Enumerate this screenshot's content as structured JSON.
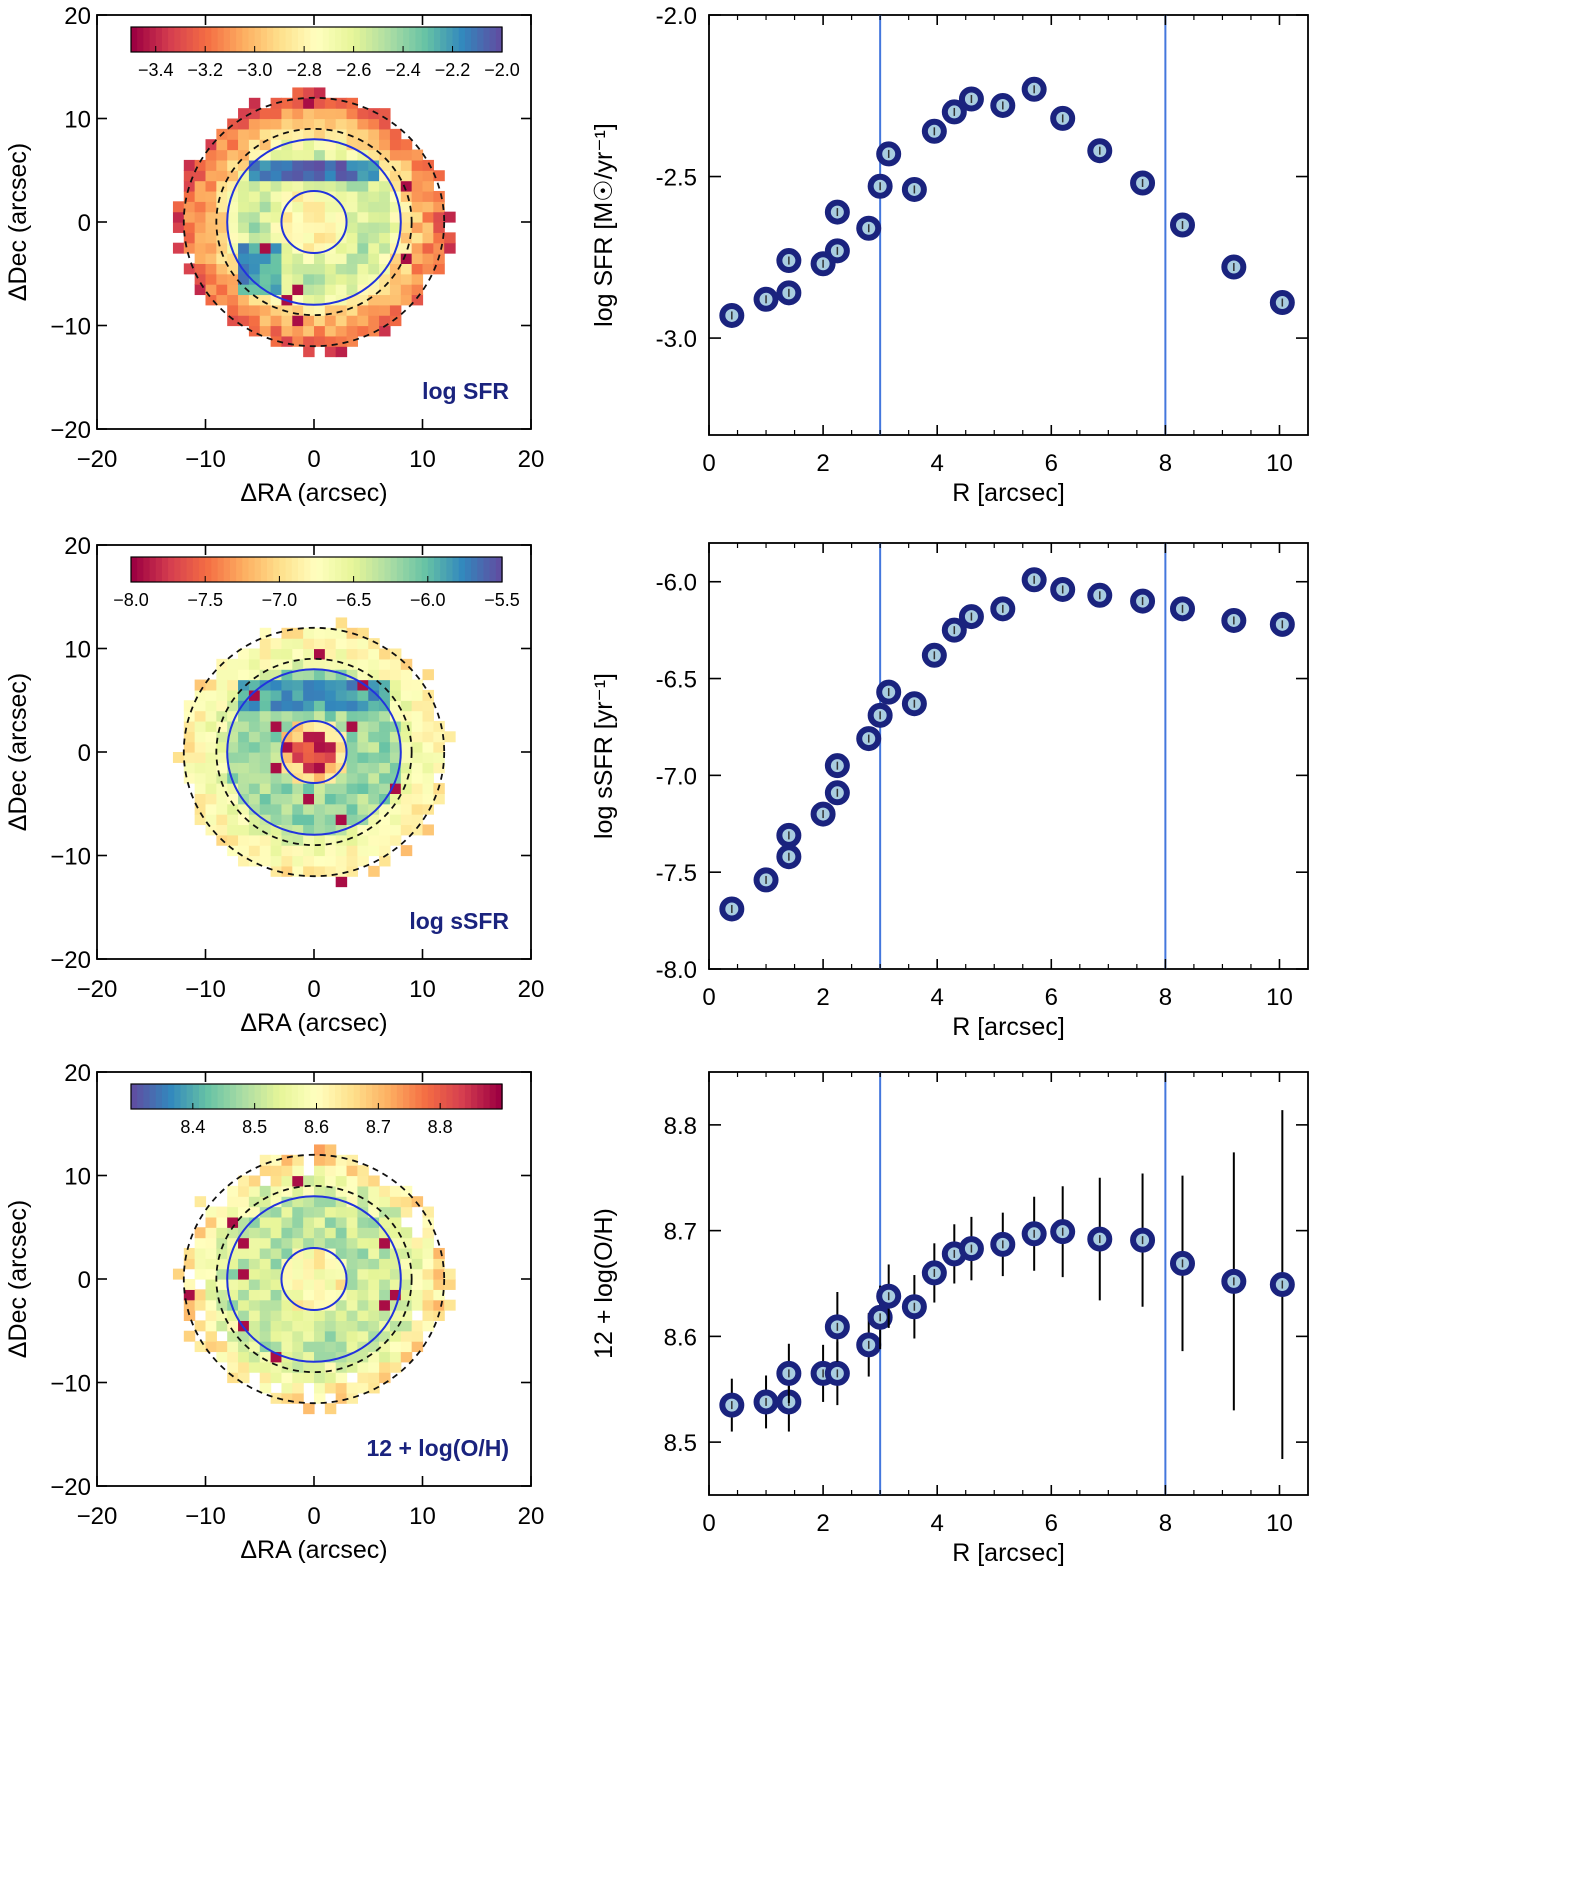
{
  "colors": {
    "circle": "#2233dd",
    "vline": "#4477dd",
    "marker": "#1a237e",
    "marker_inner": "#a9cde0",
    "label_blue": "#1a237e",
    "dashed": "#111111"
  },
  "chart_data": [
    {
      "type": "heatmap",
      "title": "log SFR",
      "xlabel": "ΔRA (arcsec)",
      "ylabel": "ΔDec (arcsec)",
      "xlim": [
        -20,
        20
      ],
      "ylim": [
        -20,
        20
      ],
      "xticks": [
        "−20",
        "−10",
        "0",
        "10",
        "20"
      ],
      "yticks": [
        "−20",
        "−10",
        "0",
        "10",
        "20"
      ],
      "colorbar": {
        "range": [
          -3.5,
          -2.0
        ],
        "ticks": [
          "−3.4",
          "−3.2",
          "−3.0",
          "−2.8",
          "−2.6",
          "−2.4",
          "−2.2",
          "−2.0"
        ],
        "tick_values": [
          -3.4,
          -3.2,
          -3.0,
          -2.8,
          -2.6,
          -2.4,
          -2.2,
          -2.0
        ],
        "reverse": false
      },
      "solid_circles_arcsec": [
        3,
        8
      ],
      "dashed_circles_arcsec": [
        9,
        12
      ],
      "pattern": "sfr"
    },
    {
      "type": "heatmap",
      "title": "log sSFR",
      "xlabel": "ΔRA (arcsec)",
      "ylabel": "ΔDec (arcsec)",
      "xlim": [
        -20,
        20
      ],
      "ylim": [
        -20,
        20
      ],
      "xticks": [
        "−20",
        "−10",
        "0",
        "10",
        "20"
      ],
      "yticks": [
        "−20",
        "−10",
        "0",
        "10",
        "20"
      ],
      "colorbar": {
        "range": [
          -8.0,
          -5.5
        ],
        "ticks": [
          "−8.0",
          "−7.5",
          "−7.0",
          "−6.5",
          "−6.0",
          "−5.5"
        ],
        "tick_values": [
          -8.0,
          -7.5,
          -7.0,
          -6.5,
          -6.0,
          -5.5
        ],
        "reverse": false
      },
      "solid_circles_arcsec": [
        3,
        8
      ],
      "dashed_circles_arcsec": [
        9,
        12
      ],
      "pattern": "ssfr"
    },
    {
      "type": "heatmap",
      "title": "12 + log(O/H)",
      "xlabel": "ΔRA (arcsec)",
      "ylabel": "ΔDec (arcsec)",
      "xlim": [
        -20,
        20
      ],
      "ylim": [
        -20,
        20
      ],
      "xticks": [
        "−20",
        "−10",
        "0",
        "10",
        "20"
      ],
      "yticks": [
        "−20",
        "−10",
        "0",
        "10",
        "20"
      ],
      "colorbar": {
        "range": [
          8.3,
          8.9
        ],
        "ticks": [
          "8.4",
          "8.5",
          "8.6",
          "8.7",
          "8.8"
        ],
        "tick_values": [
          8.4,
          8.5,
          8.6,
          8.7,
          8.8
        ],
        "reverse": true
      },
      "solid_circles_arcsec": [
        3,
        8
      ],
      "dashed_circles_arcsec": [
        9,
        12
      ],
      "pattern": "oh"
    },
    {
      "type": "scatter",
      "xlabel": "R [arcsec]",
      "ylabel": "log SFR [M☉/yr⁻¹]",
      "xlim": [
        0,
        10.5
      ],
      "ylim": [
        -3.3,
        -2.0
      ],
      "xticks": [
        0,
        2,
        4,
        6,
        8,
        10
      ],
      "yticks": [
        -3.0,
        -2.5,
        -2.0
      ],
      "ytick_labels": [
        "-3.0",
        "-2.5",
        "-2.0"
      ],
      "vlines": [
        3,
        8
      ],
      "x": [
        0.4,
        1.0,
        1.4,
        1.4,
        2.0,
        2.25,
        2.25,
        2.8,
        3.0,
        3.15,
        3.6,
        3.95,
        4.3,
        4.6,
        5.15,
        5.7,
        6.2,
        6.85,
        7.6,
        8.3,
        9.2,
        10.05
      ],
      "y": [
        -2.93,
        -2.88,
        -2.76,
        -2.86,
        -2.77,
        -2.73,
        -2.61,
        -2.66,
        -2.53,
        -2.43,
        -2.54,
        -2.36,
        -2.3,
        -2.26,
        -2.28,
        -2.23,
        -2.32,
        -2.42,
        -2.52,
        -2.65,
        -2.78,
        -2.89
      ],
      "yerr": [
        0.01,
        0.01,
        0.01,
        0.01,
        0.01,
        0.01,
        0.01,
        0.01,
        0.01,
        0.01,
        0.01,
        0.01,
        0.01,
        0.01,
        0.01,
        0.01,
        0.01,
        0.01,
        0.01,
        0.01,
        0.01,
        0.01
      ]
    },
    {
      "type": "scatter",
      "xlabel": "R [arcsec]",
      "ylabel": "log sSFR [yr⁻¹]",
      "xlim": [
        0,
        10.5
      ],
      "ylim": [
        -8.0,
        -5.8
      ],
      "xticks": [
        0,
        2,
        4,
        6,
        8,
        10
      ],
      "yticks": [
        -8.0,
        -7.5,
        -7.0,
        -6.5,
        -6.0
      ],
      "ytick_labels": [
        "-8.0",
        "-7.5",
        "-7.0",
        "-6.5",
        "-6.0"
      ],
      "vlines": [
        3,
        8
      ],
      "x": [
        0.4,
        1.0,
        1.4,
        1.4,
        2.0,
        2.25,
        2.25,
        2.8,
        3.0,
        3.15,
        3.6,
        3.95,
        4.3,
        4.6,
        5.15,
        5.7,
        6.2,
        6.85,
        7.6,
        8.3,
        9.2,
        10.05
      ],
      "y": [
        -7.69,
        -7.54,
        -7.31,
        -7.42,
        -7.2,
        -7.09,
        -6.95,
        -6.81,
        -6.69,
        -6.57,
        -6.63,
        -6.38,
        -6.25,
        -6.18,
        -6.14,
        -5.99,
        -6.04,
        -6.07,
        -6.1,
        -6.14,
        -6.2,
        -6.22
      ],
      "yerr": [
        0.01,
        0.01,
        0.01,
        0.01,
        0.01,
        0.01,
        0.01,
        0.01,
        0.01,
        0.01,
        0.01,
        0.01,
        0.01,
        0.01,
        0.01,
        0.01,
        0.01,
        0.01,
        0.01,
        0.01,
        0.01,
        0.01
      ]
    },
    {
      "type": "scatter",
      "xlabel": "R [arcsec]",
      "ylabel": "12 + log(O/H)",
      "xlim": [
        0,
        10.5
      ],
      "ylim": [
        8.45,
        8.85
      ],
      "xticks": [
        0,
        2,
        4,
        6,
        8,
        10
      ],
      "yticks": [
        8.5,
        8.6,
        8.7,
        8.8
      ],
      "ytick_labels": [
        "8.5",
        "8.6",
        "8.7",
        "8.8"
      ],
      "vlines": [
        3,
        8
      ],
      "x": [
        0.4,
        1.0,
        1.4,
        1.4,
        2.0,
        2.25,
        2.25,
        2.8,
        3.0,
        3.15,
        3.6,
        3.95,
        4.3,
        4.6,
        5.15,
        5.7,
        6.2,
        6.85,
        7.6,
        8.3,
        9.2,
        10.05
      ],
      "y": [
        8.535,
        8.538,
        8.538,
        8.565,
        8.565,
        8.565,
        8.609,
        8.592,
        8.618,
        8.638,
        8.628,
        8.66,
        8.678,
        8.683,
        8.687,
        8.697,
        8.699,
        8.692,
        8.691,
        8.669,
        8.652,
        8.649
      ],
      "yerr": [
        0.025,
        0.025,
        0.028,
        0.028,
        0.027,
        0.03,
        0.033,
        0.03,
        0.03,
        0.03,
        0.03,
        0.028,
        0.028,
        0.03,
        0.03,
        0.035,
        0.043,
        0.058,
        0.063,
        0.083,
        0.122,
        0.165
      ]
    }
  ]
}
